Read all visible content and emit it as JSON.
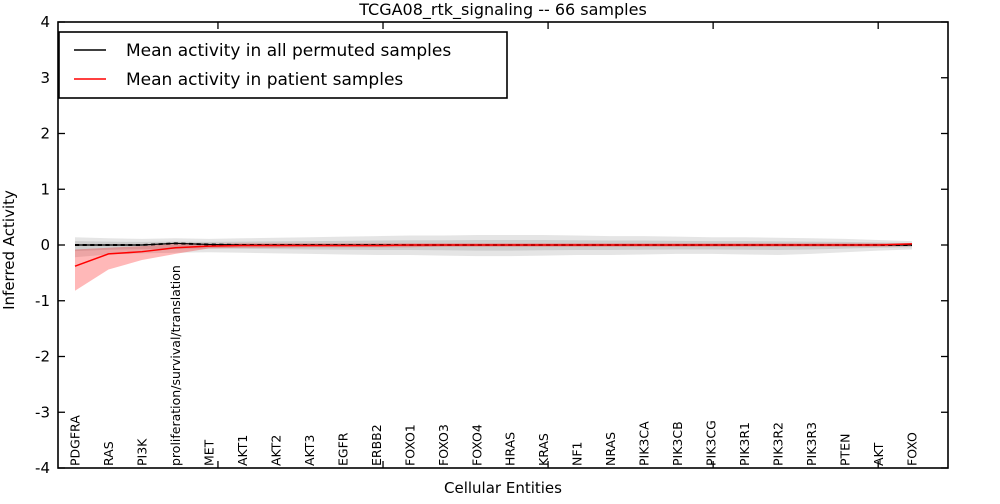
{
  "title": "TCGA08_rtk_signaling -- 66 samples",
  "colors": {
    "frame": "#000000",
    "permuted_line": "#000000",
    "patient_line": "#ff0000",
    "permuted_band": "#000000",
    "patient_band": "#ff0000",
    "background": "#ffffff"
  },
  "legend": {
    "items": [
      {
        "label": "Mean activity in all permuted samples",
        "color": "#000000"
      },
      {
        "label": "Mean activity in patient samples",
        "color": "#ff0000"
      }
    ]
  },
  "chart_data": {
    "type": "line",
    "title": "TCGA08_rtk_signaling -- 66 samples",
    "xlabel": "Cellular Entities",
    "ylabel": "Inferred Activity",
    "ylim": [
      -4,
      4
    ],
    "yticks": [
      4,
      3,
      2,
      1,
      0,
      -1,
      -2,
      -3,
      -4
    ],
    "grid": false,
    "legend_position": "upper left",
    "x_tick_label_rotation": 90,
    "x_axis_unlabeled_tick_index_positions": [
      4.27,
      9.2,
      14.13,
      19.06,
      23.99
    ],
    "categories": [
      "PDGFRA",
      "RAS",
      "PI3K",
      "proliferation/survival/translation",
      "MET",
      "AKT1",
      "AKT2",
      "AKT3",
      "EGFR",
      "ERBB2",
      "FOXO1",
      "FOXO3",
      "FOXO4",
      "HRAS",
      "KRAS",
      "NF1",
      "NRAS",
      "PIK3CA",
      "PIK3CB",
      "PIK3CG",
      "PIK3R1",
      "PIK3R2",
      "PIK3R3",
      "PTEN",
      "AKT",
      "FOXO"
    ],
    "series": [
      {
        "name": "Mean activity in all permuted samples",
        "color": "#000000",
        "line_width": 1.2,
        "overlay_dash": true,
        "values": [
          0.0,
          0.0,
          0.0,
          0.03,
          0.01,
          0.0,
          0.0,
          0.0,
          0.0,
          0.0,
          0.0,
          0.0,
          0.0,
          0.0,
          0.0,
          0.0,
          0.0,
          0.0,
          0.0,
          0.0,
          0.0,
          0.0,
          0.0,
          0.0,
          0.0,
          0.0
        ]
      },
      {
        "name": "Mean activity in patient samples",
        "color": "#ff0000",
        "line_width": 1.5,
        "overlay_dash": false,
        "values": [
          -0.38,
          -0.16,
          -0.12,
          -0.05,
          -0.02,
          -0.01,
          -0.01,
          -0.01,
          -0.01,
          -0.01,
          0.0,
          0.0,
          0.0,
          0.0,
          0.0,
          0.0,
          0.0,
          0.0,
          0.0,
          0.0,
          0.0,
          0.0,
          0.0,
          0.0,
          0.0,
          0.02
        ]
      }
    ],
    "bands": [
      {
        "name": "permuted-range-outer",
        "color": "#000000",
        "opacity": 0.1,
        "upper": [
          0.14,
          0.12,
          0.11,
          0.12,
          0.11,
          0.12,
          0.13,
          0.14,
          0.15,
          0.16,
          0.17,
          0.17,
          0.18,
          0.18,
          0.18,
          0.17,
          0.16,
          0.16,
          0.15,
          0.14,
          0.14,
          0.13,
          0.12,
          0.11,
          0.09,
          0.07
        ],
        "lower": [
          -0.22,
          -0.17,
          -0.15,
          -0.14,
          -0.13,
          -0.14,
          -0.15,
          -0.16,
          -0.17,
          -0.18,
          -0.18,
          -0.19,
          -0.2,
          -0.2,
          -0.19,
          -0.18,
          -0.18,
          -0.17,
          -0.16,
          -0.16,
          -0.17,
          -0.18,
          -0.16,
          -0.13,
          -0.1,
          -0.08
        ]
      },
      {
        "name": "permuted-range-inner",
        "color": "#000000",
        "opacity": 0.1,
        "upper": [
          0.07,
          0.06,
          0.055,
          0.06,
          0.055,
          0.06,
          0.065,
          0.07,
          0.075,
          0.08,
          0.085,
          0.085,
          0.09,
          0.09,
          0.09,
          0.085,
          0.08,
          0.08,
          0.075,
          0.07,
          0.07,
          0.065,
          0.06,
          0.055,
          0.045,
          0.035
        ],
        "lower": [
          -0.11,
          -0.085,
          -0.075,
          -0.07,
          -0.065,
          -0.07,
          -0.075,
          -0.08,
          -0.085,
          -0.09,
          -0.09,
          -0.095,
          -0.1,
          -0.1,
          -0.095,
          -0.09,
          -0.09,
          -0.085,
          -0.08,
          -0.08,
          -0.085,
          -0.09,
          -0.08,
          -0.065,
          -0.05,
          -0.04
        ]
      },
      {
        "name": "patient-range",
        "color": "#ff0000",
        "opacity": 0.28,
        "upper": [
          -0.08,
          -0.05,
          -0.02,
          0.02,
          0.02,
          0.03,
          0.03,
          0.03,
          0.03,
          0.03,
          0.03,
          0.03,
          0.03,
          0.03,
          0.03,
          0.03,
          0.03,
          0.03,
          0.03,
          0.03,
          0.03,
          0.03,
          0.03,
          0.03,
          0.03,
          0.03
        ],
        "lower": [
          -0.82,
          -0.44,
          -0.27,
          -0.16,
          -0.06,
          -0.05,
          -0.05,
          -0.04,
          -0.04,
          -0.04,
          -0.04,
          -0.03,
          -0.03,
          -0.03,
          -0.03,
          -0.03,
          -0.03,
          -0.03,
          -0.03,
          -0.03,
          -0.03,
          -0.03,
          -0.03,
          -0.03,
          -0.03,
          -0.02
        ]
      }
    ]
  }
}
